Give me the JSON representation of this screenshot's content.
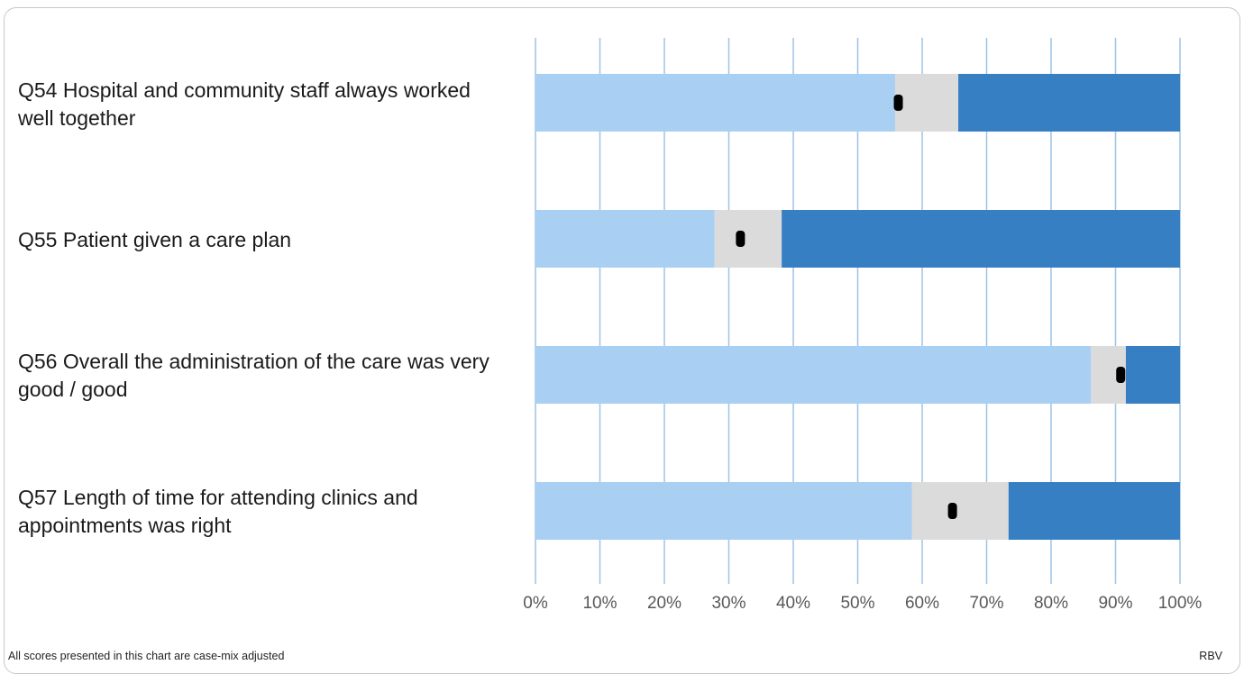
{
  "chart_data": {
    "type": "bar",
    "stacked": true,
    "orientation": "horizontal",
    "categories": [
      "Q54 Hospital and community staff always worked well together",
      "Q55 Patient given a care plan",
      "Q56 Overall the administration of the care was very good / good",
      "Q57 Length of time for attending clinics and appointments was right"
    ],
    "series": [
      {
        "values": [
          55.8,
          27.8,
          86.2,
          58.4
        ],
        "color": "#a9cff3"
      },
      {
        "values": [
          9.8,
          10.4,
          5.4,
          15.0
        ],
        "color": "#dbdbdb"
      },
      {
        "values": [
          34.4,
          61.8,
          8.4,
          26.6
        ],
        "color": "#377fc3"
      }
    ],
    "markers": [
      56.3,
      31.8,
      90.8,
      64.7
    ],
    "marker_color": "#000000",
    "xlim": [
      0,
      100
    ],
    "xticks": [
      "0%",
      "10%",
      "20%",
      "30%",
      "40%",
      "50%",
      "60%",
      "70%",
      "80%",
      "90%",
      "100%"
    ],
    "gridlines": true,
    "gridline_color": "#9dc3e6"
  },
  "footer": {
    "note": "All scores presented in this chart are case-mix adjusted",
    "code": "RBV"
  }
}
